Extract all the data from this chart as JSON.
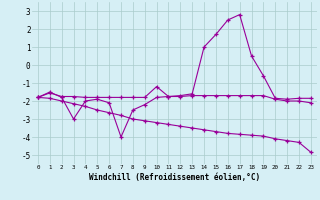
{
  "xlabel": "Windchill (Refroidissement éolien,°C)",
  "hours": [
    0,
    1,
    2,
    3,
    4,
    5,
    6,
    7,
    8,
    9,
    10,
    11,
    12,
    13,
    14,
    15,
    16,
    17,
    18,
    19,
    20,
    21,
    22,
    23
  ],
  "line1": [
    -1.8,
    -1.55,
    -1.75,
    -1.75,
    -1.8,
    -1.8,
    -1.8,
    -1.8,
    -1.8,
    -1.8,
    -1.2,
    -1.75,
    -1.75,
    -1.7,
    -1.7,
    -1.7,
    -1.7,
    -1.7,
    -1.7,
    -1.7,
    -1.9,
    -2.0,
    -2.0,
    -2.1
  ],
  "line2": [
    -1.8,
    -1.5,
    -1.8,
    -3.0,
    -2.0,
    -1.9,
    -2.1,
    -4.0,
    -2.5,
    -2.2,
    -1.8,
    -1.75,
    -1.7,
    -1.6,
    1.0,
    1.7,
    2.5,
    2.8,
    0.5,
    -0.6,
    -1.85,
    -1.9,
    -1.85,
    -1.85
  ],
  "line3": [
    -1.8,
    -1.85,
    -2.0,
    -2.15,
    -2.3,
    -2.5,
    -2.65,
    -2.8,
    -3.0,
    -3.1,
    -3.2,
    -3.3,
    -3.4,
    -3.5,
    -3.6,
    -3.7,
    -3.8,
    -3.85,
    -3.9,
    -3.95,
    -4.1,
    -4.2,
    -4.3,
    -4.85
  ],
  "line_color": "#990099",
  "bg_color": "#d6eff5",
  "grid_color": "#aacccc",
  "ylim": [
    -5.5,
    3.5
  ],
  "yticks": [
    -5,
    -4,
    -3,
    -2,
    -1,
    0,
    1,
    2,
    3
  ]
}
